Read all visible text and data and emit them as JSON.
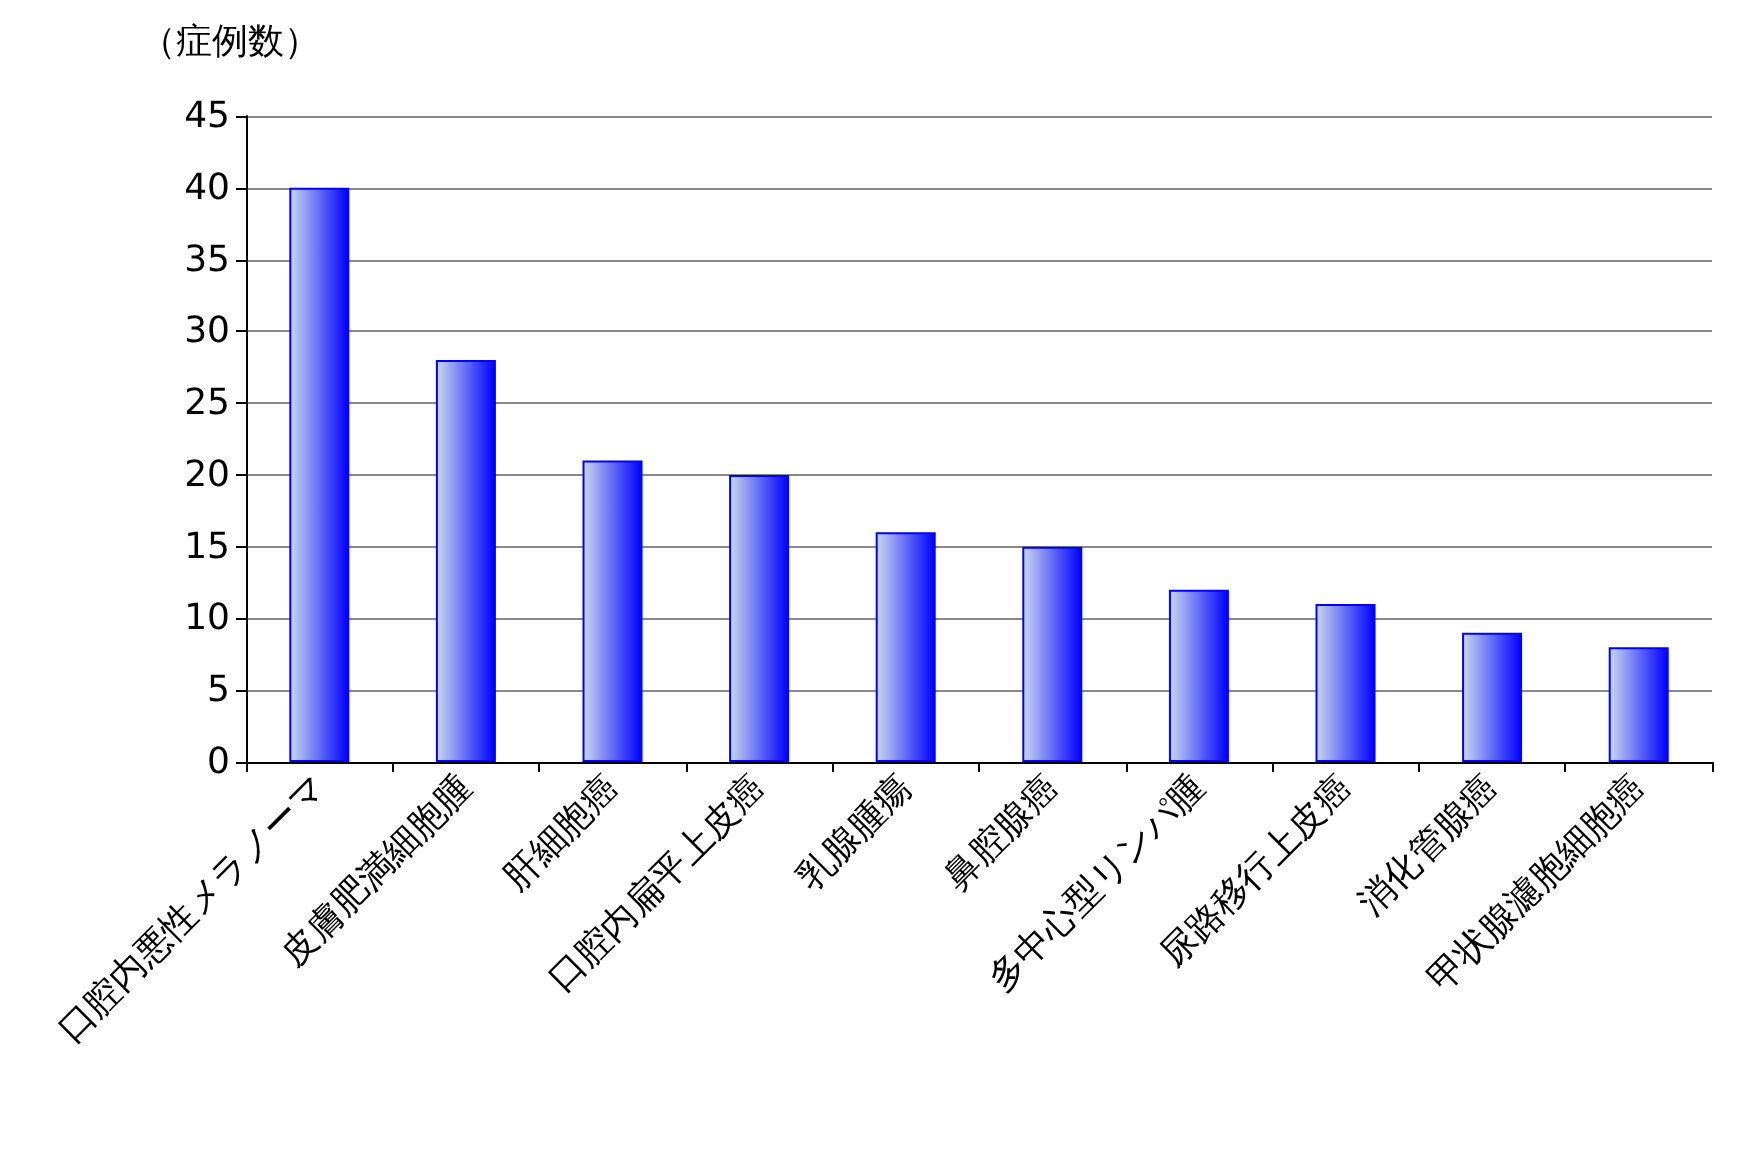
{
  "chart_data": {
    "type": "bar",
    "ylabel": "（症例数）",
    "categories": [
      "口腔内悪性メラノーマ",
      "皮膚肥満細胞腫",
      "肝細胞癌",
      "口腔内扁平上皮癌",
      "乳腺腫瘍",
      "鼻腔腺癌",
      "多中心型リンパ腫",
      "尿路移行上皮癌",
      "消化管腺癌",
      "甲状腺濾胞細胞癌"
    ],
    "values": [
      40,
      28,
      21,
      20,
      16,
      15,
      12,
      11,
      9,
      8
    ],
    "color": "#0000ff",
    "ylim": [
      0,
      45
    ],
    "yticks": [
      0,
      5,
      10,
      15,
      20,
      25,
      30,
      35,
      40,
      45
    ],
    "grid": "y"
  }
}
